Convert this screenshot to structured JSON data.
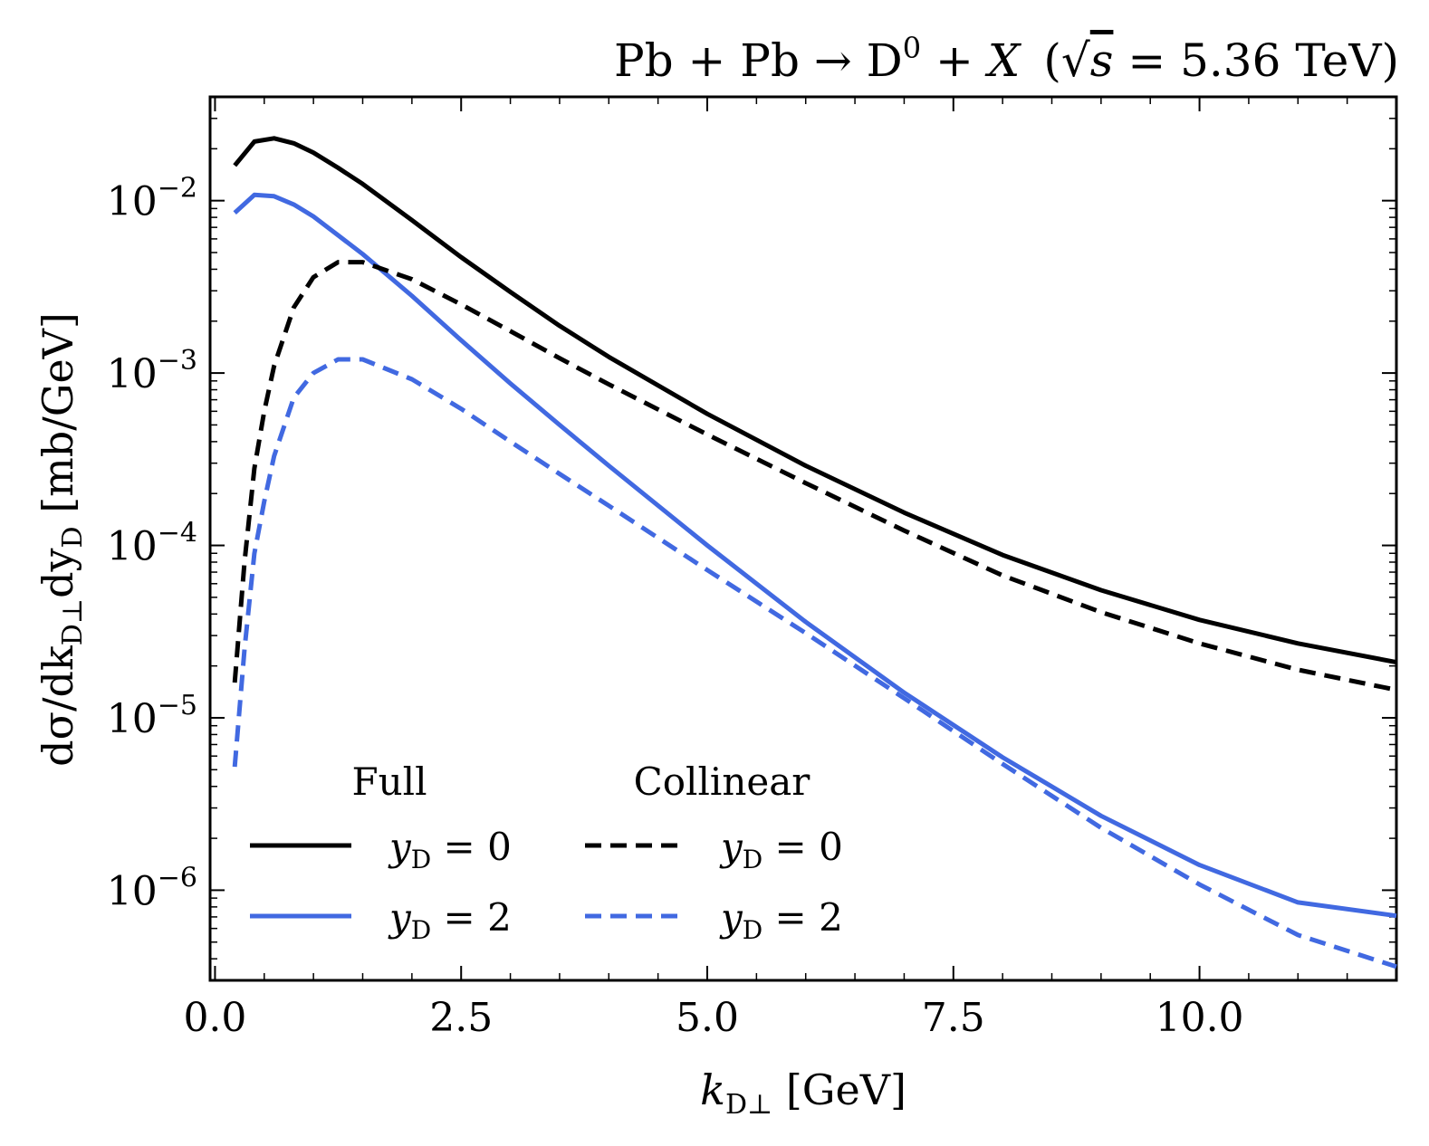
{
  "chart_data": {
    "type": "line",
    "title": "Pb + Pb → D⁰ + X  (√s = 5.36 TeV)",
    "title_parts": {
      "process": "Pb + Pb → D",
      "process_sup": "0",
      "process_tail": " + X",
      "energy_open": "(",
      "sqrt_symbol": "√",
      "sqrt_arg": "s",
      "energy_value": " = 5.36 TeV)"
    },
    "xlabel": "k_D⊥ [GeV]",
    "xlabel_parts": {
      "var": "k",
      "sub": "D⊥",
      "unit": " [GeV]"
    },
    "ylabel": "dσ/dk_D⊥dy_D [mb/GeV]",
    "ylabel_parts": {
      "a": "dσ/dk",
      "sub1": "D⊥",
      "b": "dy",
      "sub2": "D",
      "unit": " [mb/GeV]"
    },
    "x_scale": "linear",
    "y_scale": "log",
    "xlim": [
      -0.05,
      12.0
    ],
    "ylim": [
      3e-07,
      0.04
    ],
    "x_ticks": [
      0.0,
      2.5,
      5.0,
      7.5,
      10.0
    ],
    "x_tick_labels": [
      "0.0",
      "2.5",
      "5.0",
      "7.5",
      "10.0"
    ],
    "y_ticks": [
      1e-06,
      1e-05,
      0.0001,
      0.001,
      0.01
    ],
    "y_tick_labels": [
      {
        "base": "10",
        "exp": "−6"
      },
      {
        "base": "10",
        "exp": "−5"
      },
      {
        "base": "10",
        "exp": "−4"
      },
      {
        "base": "10",
        "exp": "−3"
      },
      {
        "base": "10",
        "exp": "−2"
      }
    ],
    "grid": false,
    "legend": {
      "placement": "lower-left",
      "columns": [
        {
          "header": "Full",
          "entries": [
            "y_D = 0",
            "y_D = 2"
          ]
        },
        {
          "header": "Collinear",
          "entries": [
            "y_D = 0",
            "y_D = 2"
          ]
        }
      ],
      "entry_parts": [
        {
          "var": "y",
          "sub": "D",
          "rest": " = 0"
        },
        {
          "var": "y",
          "sub": "D",
          "rest": " = 2"
        }
      ]
    },
    "series": [
      {
        "name": "Full y_D = 0",
        "color": "#000000",
        "style": "solid",
        "x": [
          0.2,
          0.4,
          0.6,
          0.8,
          1.0,
          1.25,
          1.5,
          2.0,
          2.5,
          3.0,
          3.5,
          4.0,
          5.0,
          6.0,
          7.0,
          8.0,
          9.0,
          10.0,
          11.0,
          12.0
        ],
        "y": [
          0.016,
          0.022,
          0.023,
          0.0215,
          0.019,
          0.0155,
          0.0125,
          0.0077,
          0.0047,
          0.00295,
          0.00188,
          0.00124,
          0.00058,
          0.00029,
          0.000155,
          8.8e-05,
          5.5e-05,
          3.7e-05,
          2.7e-05,
          2.1e-05
        ]
      },
      {
        "name": "Full y_D = 2",
        "color": "#4169e1",
        "style": "solid",
        "x": [
          0.2,
          0.4,
          0.6,
          0.8,
          1.0,
          1.25,
          1.5,
          2.0,
          2.5,
          3.0,
          3.5,
          4.0,
          5.0,
          6.0,
          7.0,
          8.0,
          9.0,
          10.0,
          11.0,
          12.0
        ],
        "y": [
          0.0085,
          0.0108,
          0.0106,
          0.0095,
          0.0081,
          0.0063,
          0.0049,
          0.0028,
          0.00155,
          0.00087,
          0.0005,
          0.00029,
          0.0001,
          3.6e-05,
          1.4e-05,
          5.9e-06,
          2.7e-06,
          1.4e-06,
          8.5e-07,
          7.1e-07
        ]
      },
      {
        "name": "Collinear y_D = 0",
        "color": "#000000",
        "style": "dashed",
        "x": [
          0.2,
          0.3,
          0.4,
          0.5,
          0.6,
          0.8,
          1.0,
          1.25,
          1.5,
          2.0,
          2.5,
          3.0,
          3.5,
          4.0,
          5.0,
          6.0,
          7.0,
          8.0,
          9.0,
          10.0,
          11.0,
          12.0
        ],
        "y": [
          1.6e-05,
          8e-05,
          0.00028,
          0.0006,
          0.0011,
          0.0024,
          0.0036,
          0.0044,
          0.0044,
          0.0035,
          0.0025,
          0.00175,
          0.00122,
          0.00086,
          0.00044,
          0.00023,
          0.000122,
          6.7e-05,
          4.1e-05,
          2.7e-05,
          1.9e-05,
          1.45e-05
        ]
      },
      {
        "name": "Collinear y_D = 2",
        "color": "#4169e1",
        "style": "dashed",
        "x": [
          0.2,
          0.3,
          0.4,
          0.5,
          0.6,
          0.8,
          1.0,
          1.25,
          1.5,
          2.0,
          2.5,
          3.0,
          3.5,
          4.0,
          5.0,
          6.0,
          7.0,
          8.0,
          9.0,
          10.0,
          11.0,
          12.0
        ],
        "y": [
          5.2e-06,
          2.5e-05,
          9e-05,
          0.00018,
          0.00033,
          0.00072,
          0.001,
          0.0012,
          0.0012,
          0.00092,
          0.00062,
          0.0004,
          0.00026,
          0.00017,
          7.2e-05,
          3.1e-05,
          1.3e-05,
          5.4e-06,
          2.3e-06,
          1.08e-06,
          5.5e-07,
          3.6e-07
        ]
      }
    ]
  }
}
